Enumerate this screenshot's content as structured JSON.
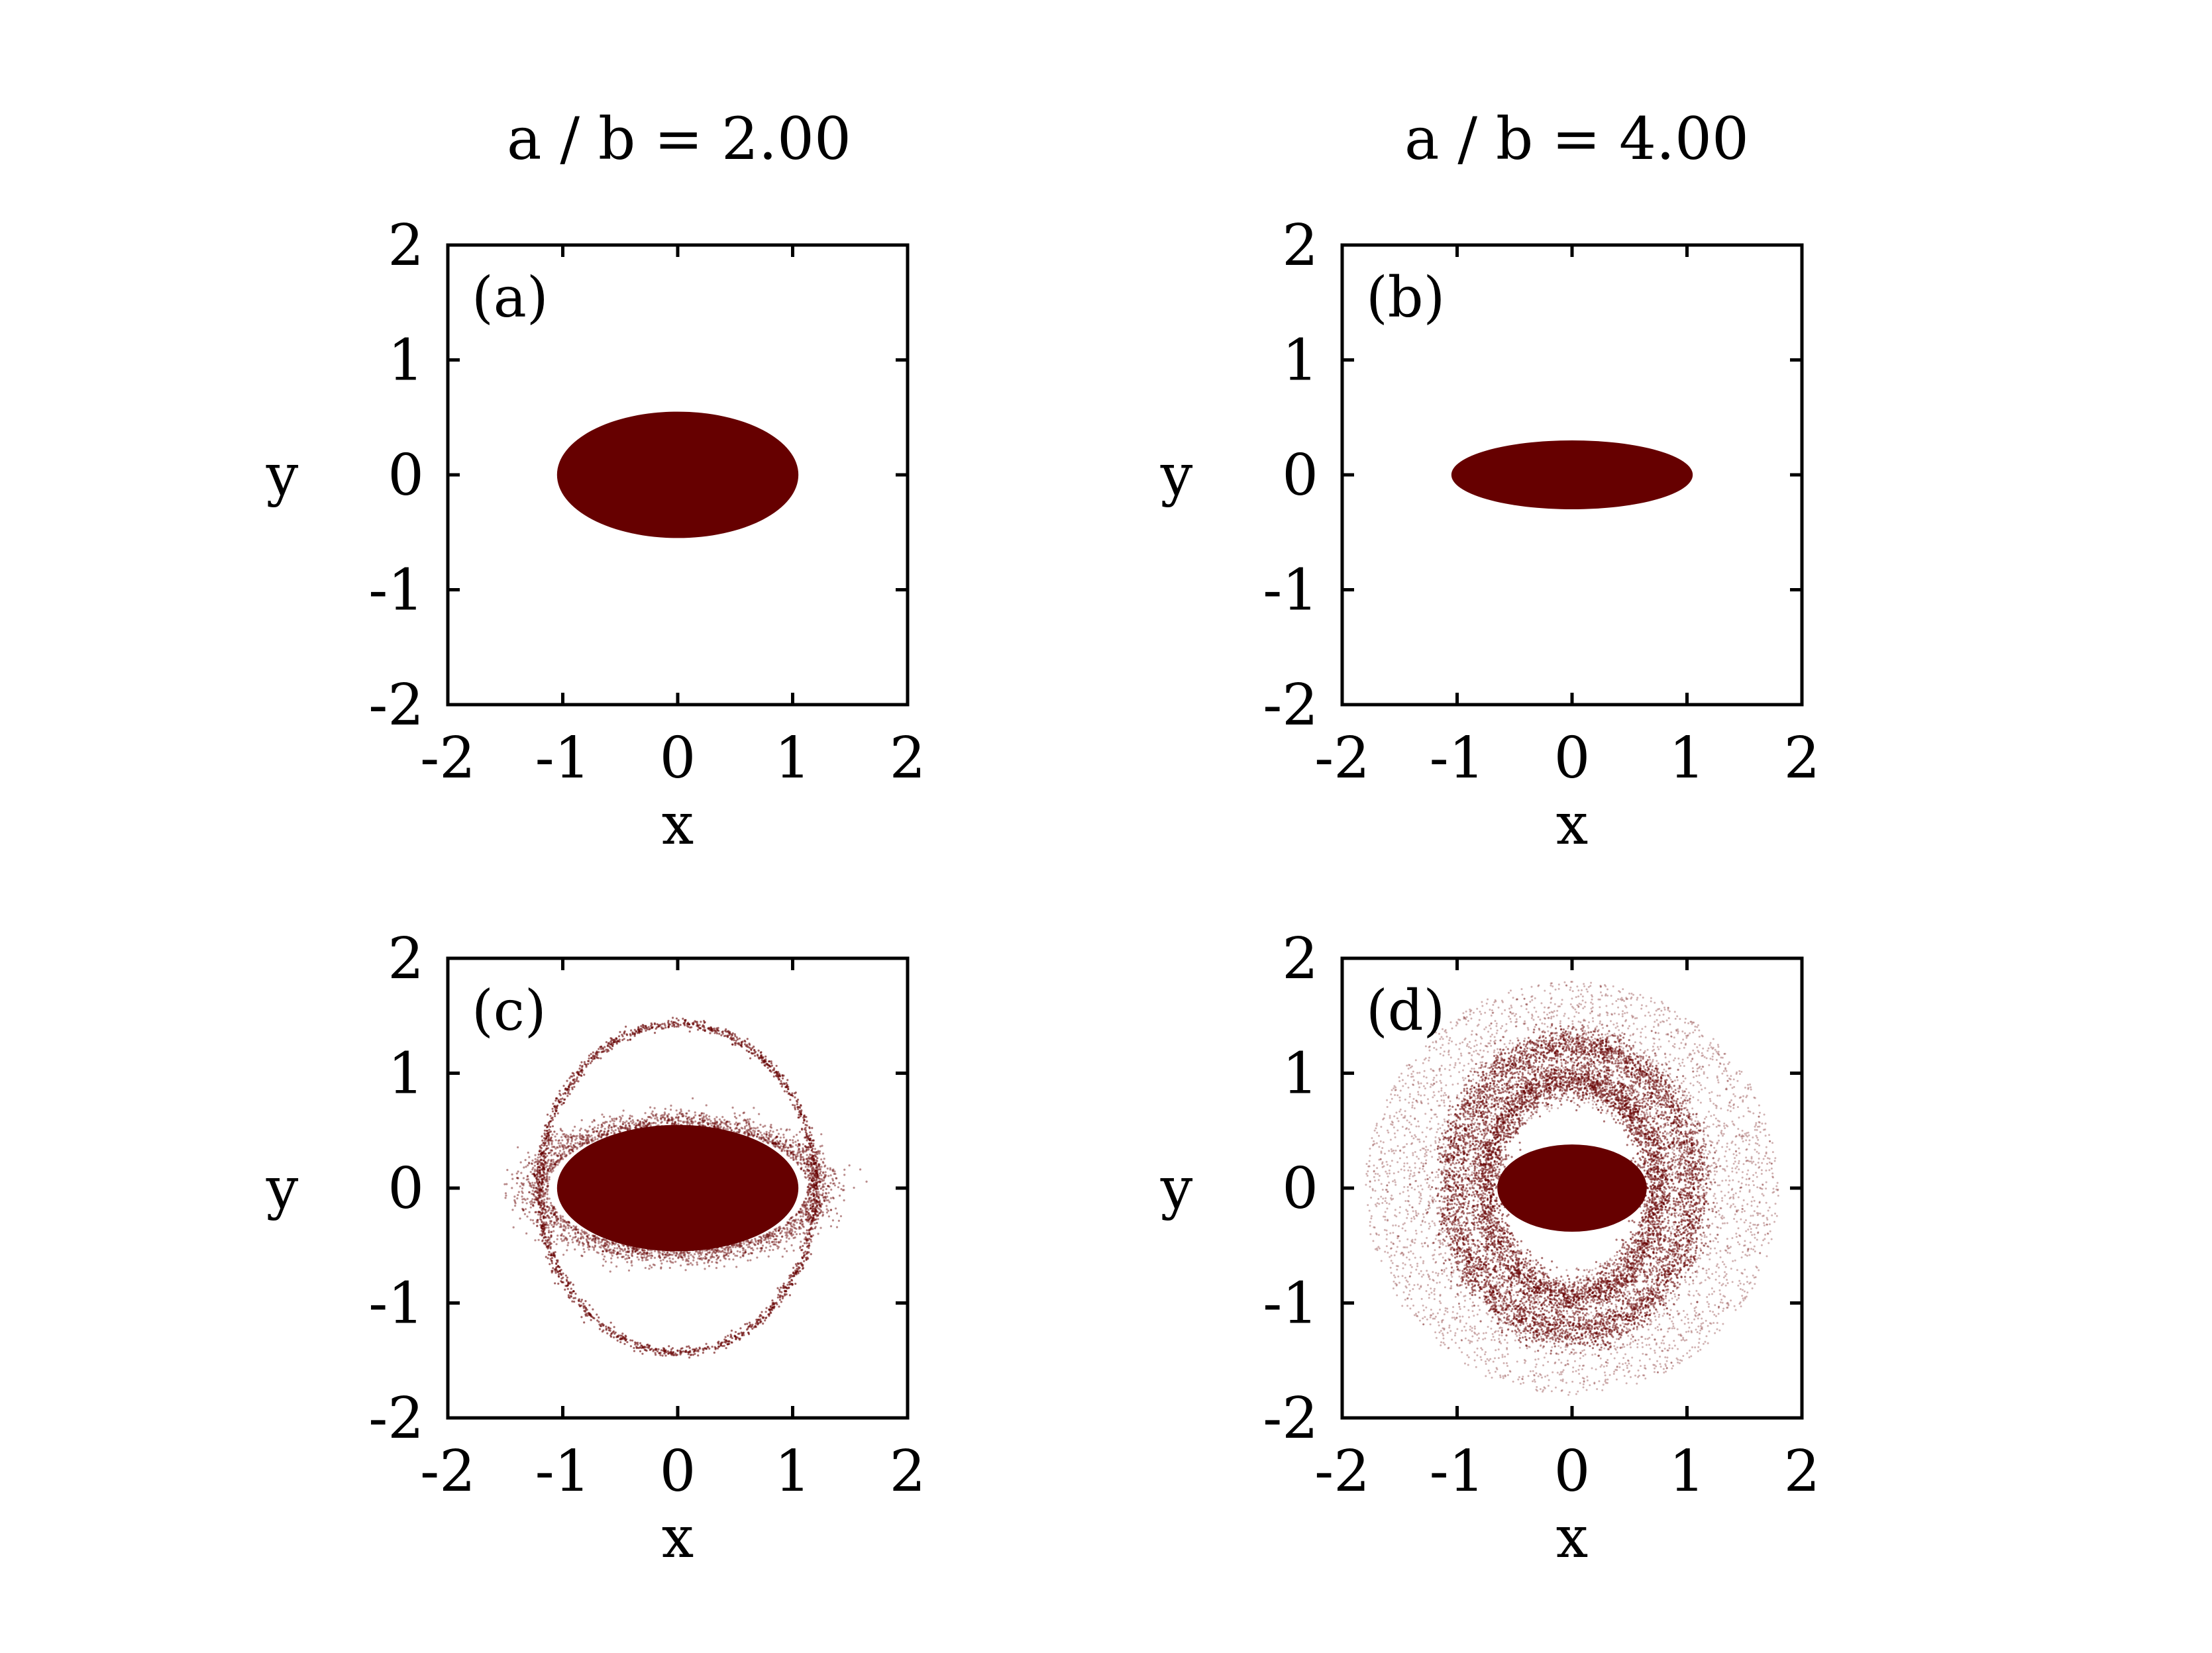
{
  "column_titles": [
    "a / b = 2.00",
    "a / b = 4.00"
  ],
  "colors": {
    "points": "#660000",
    "axes": "#000000",
    "background": "#ffffff"
  },
  "chart_data": [
    {
      "type": "scatter",
      "panel_label": "(a)",
      "xlabel": "x",
      "ylabel": "y",
      "xlim": [
        -2,
        2
      ],
      "ylim": [
        -2,
        2
      ],
      "xticks": [
        -2,
        -1,
        0,
        1,
        2
      ],
      "yticks": [
        -2,
        -1,
        0,
        1,
        2
      ],
      "xtick_labels": [
        "-2",
        "-1",
        "0",
        "1",
        "2"
      ],
      "ytick_labels": [
        "-2",
        "-1",
        "0",
        "1",
        "2"
      ],
      "grid": false,
      "regions": [
        {
          "shape": "filled-ellipse",
          "cx": 0,
          "cy": 0,
          "rx": 1.05,
          "ry": 0.55
        }
      ]
    },
    {
      "type": "scatter",
      "panel_label": "(b)",
      "xlabel": "x",
      "ylabel": "y",
      "xlim": [
        -2,
        2
      ],
      "ylim": [
        -2,
        2
      ],
      "xticks": [
        -2,
        -1,
        0,
        1,
        2
      ],
      "yticks": [
        -2,
        -1,
        0,
        1,
        2
      ],
      "xtick_labels": [
        "-2",
        "-1",
        "0",
        "1",
        "2"
      ],
      "ytick_labels": [
        "-2",
        "-1",
        "0",
        "1",
        "2"
      ],
      "grid": false,
      "regions": [
        {
          "shape": "filled-ellipse",
          "cx": 0,
          "cy": 0,
          "rx": 1.05,
          "ry": 0.3
        }
      ]
    },
    {
      "type": "scatter",
      "panel_label": "(c)",
      "xlabel": "x",
      "ylabel": "y",
      "xlim": [
        -2,
        2
      ],
      "ylim": [
        -2,
        2
      ],
      "xticks": [
        -2,
        -1,
        0,
        1,
        2
      ],
      "yticks": [
        -2,
        -1,
        0,
        1,
        2
      ],
      "xtick_labels": [
        "-2",
        "-1",
        "0",
        "1",
        "2"
      ],
      "ytick_labels": [
        "-2",
        "-1",
        "0",
        "1",
        "2"
      ],
      "grid": false,
      "regions": [
        {
          "shape": "halo-ellipse",
          "cx": 0,
          "cy": 0,
          "rx": 1.25,
          "ry": 0.6
        },
        {
          "shape": "ring",
          "cx": 0,
          "cy": 0,
          "rx": 1.2,
          "ry": 1.43
        },
        {
          "shape": "filled-ellipse",
          "cx": 0,
          "cy": 0,
          "rx": 1.05,
          "ry": 0.55
        }
      ]
    },
    {
      "type": "scatter",
      "panel_label": "(d)",
      "xlabel": "x",
      "ylabel": "y",
      "xlim": [
        -2,
        2
      ],
      "ylim": [
        -2,
        2
      ],
      "xticks": [
        -2,
        -1,
        0,
        1,
        2
      ],
      "yticks": [
        -2,
        -1,
        0,
        1,
        2
      ],
      "xtick_labels": [
        "-2",
        "-1",
        "0",
        "1",
        "2"
      ],
      "ytick_labels": [
        "-2",
        "-1",
        "0",
        "1",
        "2"
      ],
      "grid": false,
      "regions": [
        {
          "shape": "diffuse-disk",
          "cx": 0,
          "cy": 0,
          "r": 1.8
        },
        {
          "shape": "ring",
          "cx": 0,
          "cy": 0,
          "rx": 1.05,
          "ry": 1.25
        },
        {
          "shape": "ring",
          "cx": 0,
          "cy": 0,
          "rx": 0.75,
          "ry": 0.95
        },
        {
          "shape": "filled-ellipse",
          "cx": 0,
          "cy": 0,
          "rx": 0.65,
          "ry": 0.38
        }
      ]
    }
  ]
}
